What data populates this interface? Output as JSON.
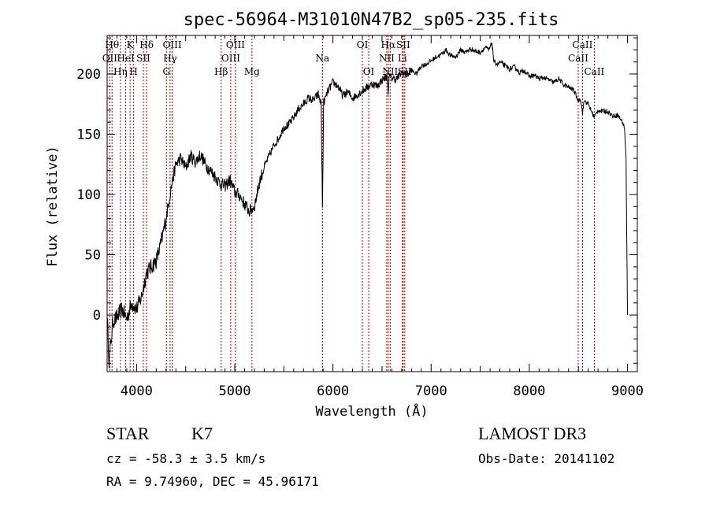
{
  "chart_data": {
    "type": "line",
    "title": "spec-56964-M31010N47B2_sp05-235.fits",
    "xlabel": "Wavelength (Å)",
    "ylabel": "Flux (relative)",
    "xlim": [
      3700,
      9100
    ],
    "ylim": [
      -47,
      232
    ],
    "x_ticks": [
      4000,
      5000,
      6000,
      7000,
      8000,
      9000
    ],
    "y_ticks": [
      0,
      50,
      100,
      150,
      200
    ],
    "series": [
      {
        "name": "spectrum",
        "color": "#000000",
        "anchors": [
          [
            3700,
            0
          ],
          [
            3720,
            -38
          ],
          [
            3760,
            -5
          ],
          [
            3800,
            -2
          ],
          [
            3850,
            5
          ],
          [
            3900,
            -3
          ],
          [
            3950,
            10
          ],
          [
            4000,
            5
          ],
          [
            4050,
            15
          ],
          [
            4100,
            35
          ],
          [
            4150,
            40
          ],
          [
            4200,
            45
          ],
          [
            4250,
            60
          ],
          [
            4300,
            80
          ],
          [
            4350,
            105
          ],
          [
            4400,
            125
          ],
          [
            4450,
            130
          ],
          [
            4500,
            122
          ],
          [
            4550,
            132
          ],
          [
            4600,
            127
          ],
          [
            4650,
            133
          ],
          [
            4700,
            125
          ],
          [
            4750,
            120
          ],
          [
            4800,
            115
          ],
          [
            4850,
            109
          ],
          [
            4900,
            107
          ],
          [
            4950,
            112
          ],
          [
            5000,
            102
          ],
          [
            5050,
            99
          ],
          [
            5100,
            92
          ],
          [
            5150,
            86
          ],
          [
            5200,
            90
          ],
          [
            5250,
            110
          ],
          [
            5300,
            123
          ],
          [
            5350,
            132
          ],
          [
            5400,
            141
          ],
          [
            5450,
            147
          ],
          [
            5500,
            156
          ],
          [
            5550,
            158
          ],
          [
            5600,
            164
          ],
          [
            5650,
            171
          ],
          [
            5700,
            175
          ],
          [
            5750,
            180
          ],
          [
            5800,
            178
          ],
          [
            5850,
            183
          ],
          [
            5880,
            175
          ],
          [
            5893,
            88
          ],
          [
            5905,
            176
          ],
          [
            5950,
            186
          ],
          [
            6000,
            193
          ],
          [
            6050,
            190
          ],
          [
            6100,
            182
          ],
          [
            6150,
            185
          ],
          [
            6200,
            180
          ],
          [
            6250,
            183
          ],
          [
            6300,
            186
          ],
          [
            6350,
            189
          ],
          [
            6400,
            192
          ],
          [
            6450,
            190
          ],
          [
            6500,
            195
          ],
          [
            6550,
            198
          ],
          [
            6563,
            186
          ],
          [
            6575,
            198
          ],
          [
            6620,
            196
          ],
          [
            6650,
            196
          ],
          [
            6700,
            201
          ],
          [
            6750,
            199
          ],
          [
            6800,
            203
          ],
          [
            6850,
            200
          ],
          [
            6900,
            207
          ],
          [
            6950,
            208
          ],
          [
            7000,
            211
          ],
          [
            7050,
            214
          ],
          [
            7100,
            216
          ],
          [
            7150,
            220
          ],
          [
            7200,
            215
          ],
          [
            7250,
            214
          ],
          [
            7300,
            220
          ],
          [
            7350,
            218
          ],
          [
            7400,
            221
          ],
          [
            7450,
            219
          ],
          [
            7500,
            218
          ],
          [
            7550,
            222
          ],
          [
            7590,
            220
          ],
          [
            7620,
            226
          ],
          [
            7640,
            210
          ],
          [
            7680,
            208
          ],
          [
            7700,
            210
          ],
          [
            7750,
            207
          ],
          [
            7800,
            204
          ],
          [
            7850,
            206
          ],
          [
            7900,
            201
          ],
          [
            7950,
            203
          ],
          [
            8000,
            198
          ],
          [
            8050,
            199
          ],
          [
            8100,
            196
          ],
          [
            8150,
            197
          ],
          [
            8200,
            195
          ],
          [
            8250,
            193
          ],
          [
            8300,
            196
          ],
          [
            8350,
            191
          ],
          [
            8400,
            189
          ],
          [
            8450,
            187
          ],
          [
            8498,
            178
          ],
          [
            8520,
            180
          ],
          [
            8542,
            168
          ],
          [
            8560,
            178
          ],
          [
            8600,
            175
          ],
          [
            8662,
            164
          ],
          [
            8700,
            170
          ],
          [
            8750,
            169
          ],
          [
            8800,
            169
          ],
          [
            8850,
            165
          ],
          [
            8900,
            166
          ],
          [
            8950,
            160
          ],
          [
            8970,
            155
          ],
          [
            8985,
            130
          ],
          [
            9000,
            0
          ]
        ]
      }
    ],
    "line_markers": [
      {
        "wavelength": 3750,
        "label": "Hθ",
        "row": 0
      },
      {
        "wavelength": 3727,
        "label": "OII",
        "row": 1
      },
      {
        "wavelength": 3835,
        "label": "Hη",
        "row": 2
      },
      {
        "wavelength": 3889,
        "label": "HeI",
        "row": 1
      },
      {
        "wavelength": 3934,
        "label": "K",
        "row": 0
      },
      {
        "wavelength": 3970,
        "label": "H",
        "row": 2
      },
      {
        "wavelength": 4069,
        "label": "SII",
        "row": 1
      },
      {
        "wavelength": 4102,
        "label": "Hδ",
        "row": 0
      },
      {
        "wavelength": 4304,
        "label": "G",
        "row": 2
      },
      {
        "wavelength": 4341,
        "label": "Hγ",
        "row": 1
      },
      {
        "wavelength": 4363,
        "label": "OIII",
        "row": 0
      },
      {
        "wavelength": 4861,
        "label": "Hβ",
        "row": 2
      },
      {
        "wavelength": 4959,
        "label": "OIII",
        "row": 1
      },
      {
        "wavelength": 5007,
        "label": "OIII",
        "row": 0
      },
      {
        "wavelength": 5175,
        "label": "Mg",
        "row": 2
      },
      {
        "wavelength": 5893,
        "label": "Na",
        "row": 1
      },
      {
        "wavelength": 6300,
        "label": "OI",
        "row": 0
      },
      {
        "wavelength": 6364,
        "label": "OI",
        "row": 2
      },
      {
        "wavelength": 6548,
        "label": "NII",
        "row": 1
      },
      {
        "wavelength": 6563,
        "label": "Hα",
        "row": 0
      },
      {
        "wavelength": 6583,
        "label": "NII",
        "row": 2
      },
      {
        "wavelength": 6707,
        "label": "Li",
        "row": 1
      },
      {
        "wavelength": 6716,
        "label": "SII",
        "row": 0
      },
      {
        "wavelength": 6731,
        "label": "SII",
        "row": 2
      },
      {
        "wavelength": 8498,
        "label": "CaII",
        "row": 1
      },
      {
        "wavelength": 8542,
        "label": "CaII",
        "row": 0
      },
      {
        "wavelength": 8662,
        "label": "CaII",
        "row": 2
      }
    ]
  },
  "info": {
    "class": "STAR",
    "subclass": "K7",
    "survey": "LAMOST DR3",
    "redshift": "cz = -58.3 ± 3.5 km/s",
    "obs_date": "Obs-Date: 20141102",
    "coords": "RA =   9.74960, DEC =  45.96171"
  },
  "colors": {
    "spectrum": "#000000",
    "marker": "#b00000"
  }
}
